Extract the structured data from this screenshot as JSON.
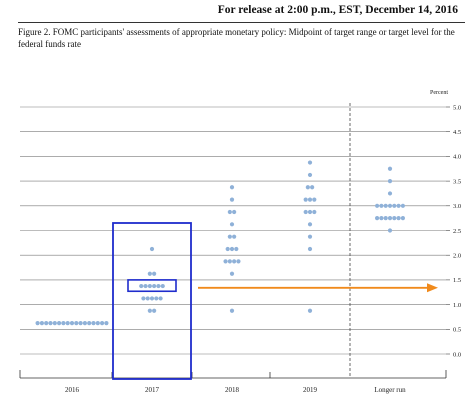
{
  "header": {
    "release_text": "For release at 2:00 p.m., EST, December 14, 2016",
    "figure_caption": "Figure 2.  FOMC participants' assessments of appropriate monetary policy: Midpoint of target range or target level for the federal funds rate"
  },
  "chart_data": {
    "type": "scatter",
    "title": "",
    "y_unit_label": "Percent",
    "ylim": [
      0.0,
      5.0
    ],
    "y_ticks": [
      "0.0",
      "0.5",
      "1.0",
      "1.5",
      "2.0",
      "2.5",
      "3.0",
      "3.5",
      "4.0",
      "4.5",
      "5.0"
    ],
    "categories": [
      "2016",
      "2017",
      "2018",
      "2019",
      "Longer run"
    ],
    "grid": true,
    "dot_color": "#8fb1d8",
    "series": [
      {
        "values": [
          {
            "x": "2016",
            "y": 0.625,
            "count": 17
          },
          {
            "x": "2017",
            "y": 0.875,
            "count": 2
          },
          {
            "x": "2017",
            "y": 1.125,
            "count": 5
          },
          {
            "x": "2017",
            "y": 1.375,
            "count": 6
          },
          {
            "x": "2017",
            "y": 1.625,
            "count": 2
          },
          {
            "x": "2017",
            "y": 2.125,
            "count": 1
          },
          {
            "x": "2018",
            "y": 0.875,
            "count": 1
          },
          {
            "x": "2018",
            "y": 1.625,
            "count": 1
          },
          {
            "x": "2018",
            "y": 1.875,
            "count": 4
          },
          {
            "x": "2018",
            "y": 2.125,
            "count": 3
          },
          {
            "x": "2018",
            "y": 2.375,
            "count": 2
          },
          {
            "x": "2018",
            "y": 2.625,
            "count": 1
          },
          {
            "x": "2018",
            "y": 2.875,
            "count": 2
          },
          {
            "x": "2018",
            "y": 3.125,
            "count": 1
          },
          {
            "x": "2018",
            "y": 3.375,
            "count": 1
          },
          {
            "x": "2019",
            "y": 0.875,
            "count": 1
          },
          {
            "x": "2019",
            "y": 2.125,
            "count": 1
          },
          {
            "x": "2019",
            "y": 2.375,
            "count": 1
          },
          {
            "x": "2019",
            "y": 2.625,
            "count": 1
          },
          {
            "x": "2019",
            "y": 2.875,
            "count": 3
          },
          {
            "x": "2019",
            "y": 3.125,
            "count": 3
          },
          {
            "x": "2019",
            "y": 3.375,
            "count": 2
          },
          {
            "x": "2019",
            "y": 3.625,
            "count": 1
          },
          {
            "x": "2019",
            "y": 3.875,
            "count": 1
          },
          {
            "x": "Longer run",
            "y": 2.5,
            "count": 1
          },
          {
            "x": "Longer run",
            "y": 2.75,
            "count": 7
          },
          {
            "x": "Longer run",
            "y": 3.0,
            "count": 7
          },
          {
            "x": "Longer run",
            "y": 3.25,
            "count": 1
          },
          {
            "x": "Longer run",
            "y": 3.5,
            "count": 1
          },
          {
            "x": "Longer run",
            "y": 3.75,
            "count": 1
          }
        ]
      }
    ],
    "annotations": [
      {
        "type": "box",
        "category": "2017",
        "y_range": [
          0,
          2.7
        ],
        "color": "#1f2ccc"
      },
      {
        "type": "box",
        "category": "2017",
        "y_range": [
          1.27,
          1.5
        ],
        "color": "#1f2ccc"
      },
      {
        "type": "arrow",
        "from_category": "2017",
        "to": "Longer run",
        "y": 1.34,
        "color": "#f08a1c"
      }
    ]
  }
}
